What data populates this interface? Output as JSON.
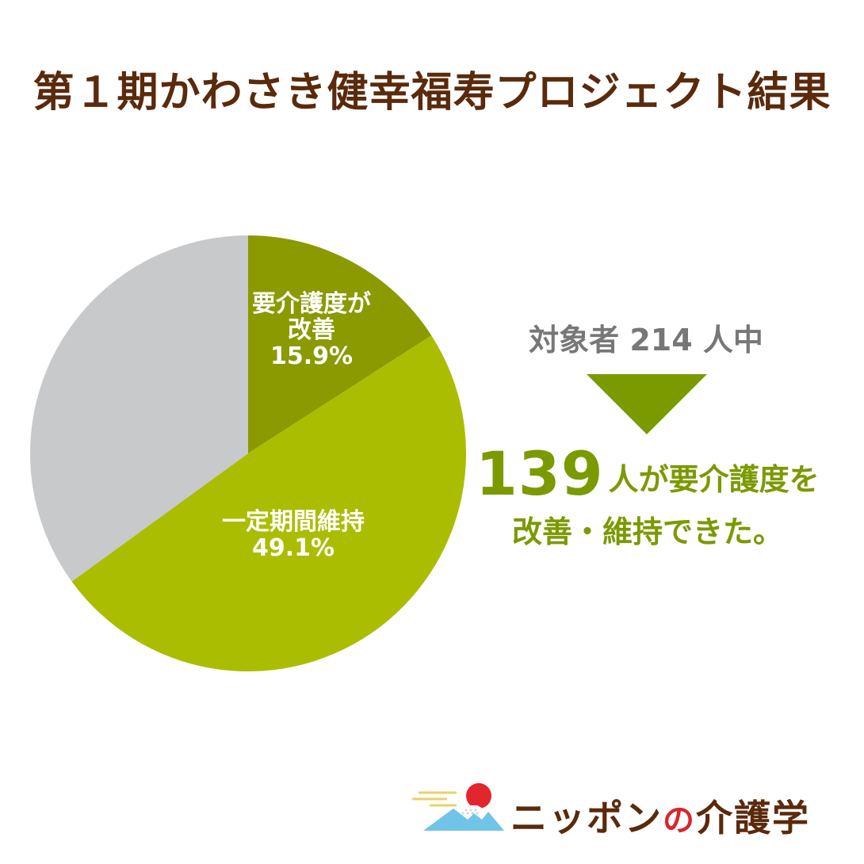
{
  "title": "第１期かわさき健幸福寿プロジェクト結果",
  "chart_data": {
    "type": "pie",
    "slices": [
      {
        "label_lines": [
          "要介護度が",
          "改善"
        ],
        "value": 15.9,
        "value_label": "15.9%",
        "color": "#8a9a00"
      },
      {
        "label_lines": [
          "一定期間維持"
        ],
        "value": 49.1,
        "value_label": "49.1%",
        "color": "#aabd00"
      },
      {
        "label_lines": [],
        "value": 35.0,
        "value_label": "",
        "color": "#c8c9cb"
      }
    ],
    "start": "12 o'clock",
    "direction": "clockwise"
  },
  "summary": {
    "target": "対象者 214 人中",
    "arrow_color": "#7a9a00",
    "count": "139",
    "line1": "人が要介護度を",
    "line2": "改善・維持できた。"
  },
  "logo": {
    "text_a": "ニッポン",
    "text_no": "の",
    "text_b": "介護学"
  }
}
